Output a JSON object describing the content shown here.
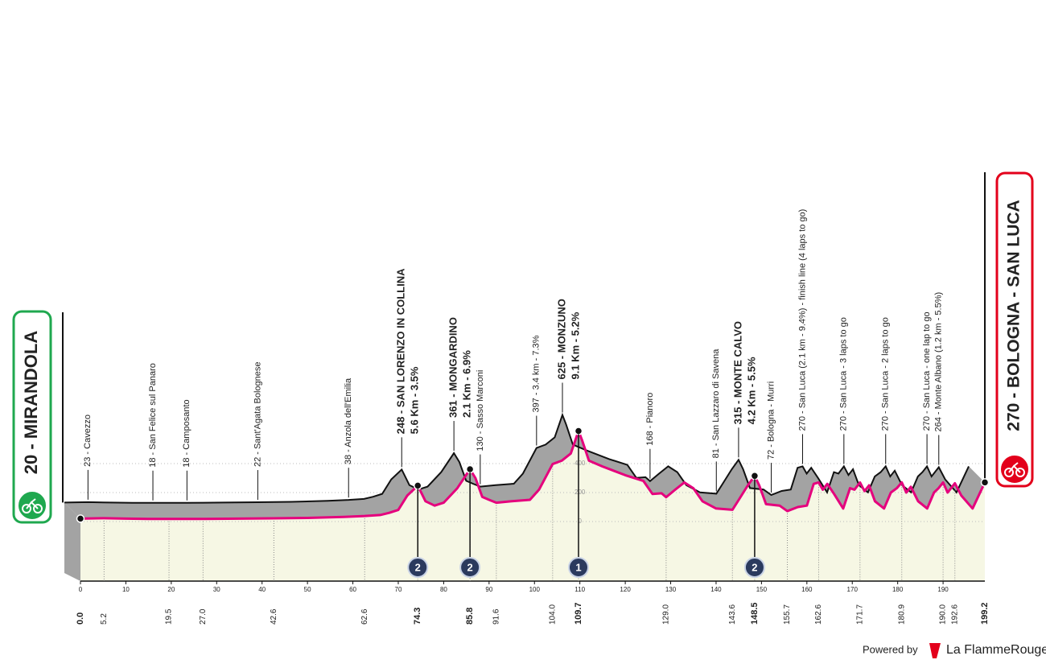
{
  "chart_data": {
    "type": "area",
    "start": {
      "title": "20 - MIRANDOLA",
      "km": "0.0"
    },
    "finish": {
      "title": "270 - BOLOGNA - SAN LUCA",
      "km": "199.2"
    },
    "x": [
      0,
      5.2,
      10,
      15,
      19.5,
      22,
      27,
      35,
      42.6,
      50,
      58,
      62.6,
      66,
      68,
      70,
      72,
      74.3,
      76,
      78,
      80,
      83,
      85.8,
      87,
      88.5,
      90,
      91.6,
      95,
      99,
      101,
      104,
      106,
      108,
      109.7,
      110.5,
      112,
      115,
      120,
      124,
      126,
      128,
      129,
      131,
      133,
      135,
      137,
      140,
      143.6,
      145,
      147,
      148.5,
      149.5,
      151,
      154,
      155.7,
      158,
      160,
      161.5,
      162.6,
      163.5,
      164.5,
      166,
      168,
      169.5,
      170.5,
      171.7,
      172.7,
      173.7,
      175,
      177,
      178.5,
      179.8,
      180.9,
      181.9,
      182.9,
      184.5,
      186.5,
      188,
      189,
      190,
      191,
      192.6,
      194,
      196.5,
      199.2
    ],
    "values": [
      20,
      23,
      20,
      18,
      18,
      18,
      18,
      20,
      22,
      25,
      32,
      38,
      45,
      60,
      80,
      180,
      248,
      140,
      110,
      130,
      230,
      361,
      300,
      170,
      150,
      130,
      140,
      150,
      220,
      397,
      420,
      470,
      625,
      560,
      420,
      380,
      320,
      280,
      190,
      195,
      168,
      220,
      270,
      230,
      140,
      90,
      81,
      150,
      250,
      315,
      250,
      120,
      110,
      72,
      100,
      110,
      260,
      270,
      220,
      260,
      190,
      90,
      230,
      220,
      270,
      210,
      250,
      140,
      90,
      200,
      230,
      270,
      200,
      240,
      140,
      90,
      200,
      230,
      270,
      200,
      264,
      180,
      90,
      270
    ],
    "xlim": [
      0,
      199.2
    ],
    "xticks": [
      0,
      10,
      20,
      30,
      40,
      50,
      60,
      70,
      80,
      90,
      100,
      110,
      120,
      130,
      140,
      150,
      160,
      170,
      180,
      190
    ],
    "ylim": [
      0,
      700
    ],
    "yticks": [
      0,
      200,
      400
    ],
    "profile_color": "#a3a3a3",
    "line_color": "#e5007d",
    "fill_color": "#f6f7e4",
    "waypoints": [
      {
        "km": "5.2",
        "label": "23 - Cavezzo"
      },
      {
        "km": "19.5",
        "label": "18 - San Felice sul Panaro"
      },
      {
        "km": "27.0",
        "label": "18 - Camposanto"
      },
      {
        "km": "42.6",
        "label": "22 - Sant'Agata Bolognese"
      },
      {
        "km": "62.6",
        "label": "38 - Anzola dell'Emilia"
      },
      {
        "km": "74.3",
        "label": "248 - SAN LORENZO IN COLLINA",
        "detail": "5.6 Km - 3.5%",
        "kom": "2"
      },
      {
        "km": "85.8",
        "label": "361 - MONGARDINO",
        "detail": "2.1 Km - 6.9%",
        "kom": "2"
      },
      {
        "km": "91.6",
        "label": "130 - Sasso Marconi"
      },
      {
        "km": "104.0",
        "label": "397 - 3.4 km - 7.3%"
      },
      {
        "km": "109.7",
        "label": "625 - MONZUNO",
        "detail": "9.1 Km - 5.2%",
        "kom": "1"
      },
      {
        "km": "129.0",
        "label": "168 - Pianoro"
      },
      {
        "km": "143.6",
        "label": "81 - San Lazzaro di Savena"
      },
      {
        "km": "148.5",
        "label": "315 - MONTE CALVO",
        "detail": "4.2 Km - 5.5%",
        "kom": "2"
      },
      {
        "km": "155.7",
        "label": "72 - Bologna - Murri"
      },
      {
        "km": "162.6",
        "label": "270 - San Luca (2.1 km - 9.4%) - finish line (4 laps to go)"
      },
      {
        "km": "171.7",
        "label": "270 - San Luca - 3 laps to go"
      },
      {
        "km": "180.9",
        "label": "270 - San Luca - 2 laps to go"
      },
      {
        "km": "190.0",
        "label": "270 - San Luca - one lap to go"
      },
      {
        "km": "192.6",
        "label": "264 - Monte Albano (1.2 km - 5.5%)"
      }
    ]
  },
  "footer": {
    "powered_by": "Powered by",
    "brand": "La FlammeRouge"
  }
}
